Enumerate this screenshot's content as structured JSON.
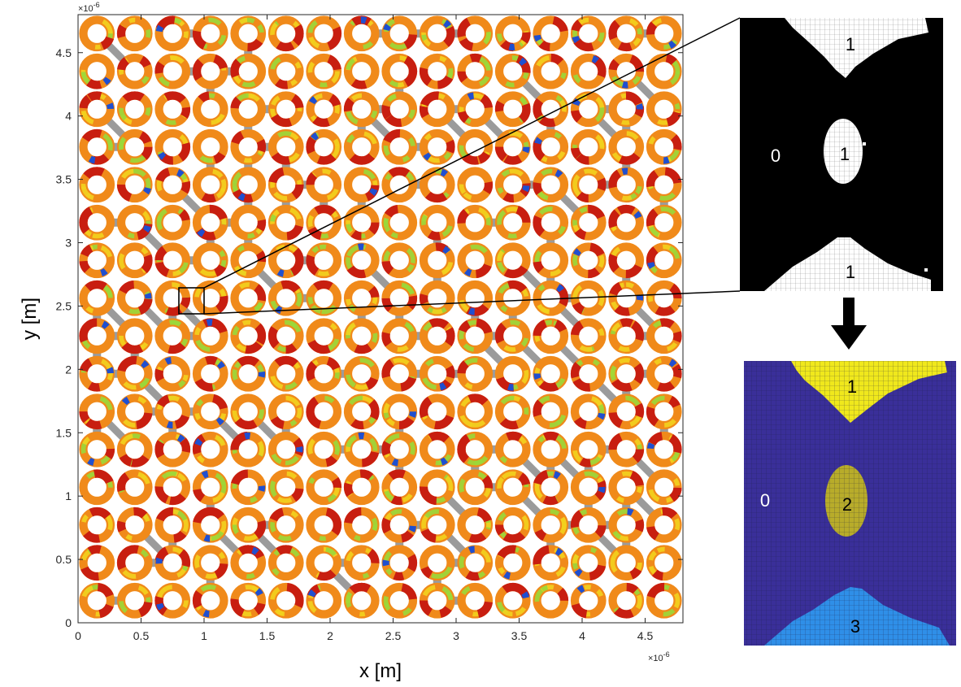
{
  "figure": {
    "xlabel": "x [m]",
    "ylabel": "y [m]",
    "x_exponent": "×10",
    "x_exponent_power": "-6",
    "y_exponent": "×10",
    "y_exponent_power": "-6"
  },
  "chart_data": {
    "type": "heatmap",
    "description_grid": {
      "rows": 16,
      "cols": 16
    },
    "xlim": [
      0,
      4.8
    ],
    "ylim": [
      0,
      4.8
    ],
    "x_ticks": [
      "0",
      "0.5",
      "1",
      "1.5",
      "2",
      "2.5",
      "3",
      "3.5",
      "4",
      "4.5"
    ],
    "y_ticks": [
      "0",
      "0.5",
      "1",
      "1.5",
      "2",
      "2.5",
      "3",
      "3.5",
      "4",
      "4.5"
    ],
    "zoom_region": {
      "x": [
        0.82,
        1.0
      ],
      "y": [
        2.45,
        2.65
      ]
    },
    "colors": {
      "ring_red": "#c81e10",
      "ring_orange": "#f08a1a",
      "ring_yellow": "#f2d21e",
      "ring_green": "#9ad83a",
      "ring_blue": "#1f4fd0",
      "connector_gray": "#8a8a8a",
      "binary_black": "#000000",
      "binary_white": "#ffffff",
      "label_purple": "#3a2f99",
      "label_yellow": "#f0e81c",
      "label_olive": "#b8ac2a",
      "label_blue": "#2f8fe8"
    }
  },
  "binary_panel": {
    "labels": [
      {
        "text": "1"
      },
      {
        "text": "0"
      },
      {
        "text": "1"
      },
      {
        "text": "1"
      }
    ]
  },
  "label_panel": {
    "labels": [
      {
        "text": "1"
      },
      {
        "text": "0"
      },
      {
        "text": "2"
      },
      {
        "text": "3"
      }
    ]
  }
}
